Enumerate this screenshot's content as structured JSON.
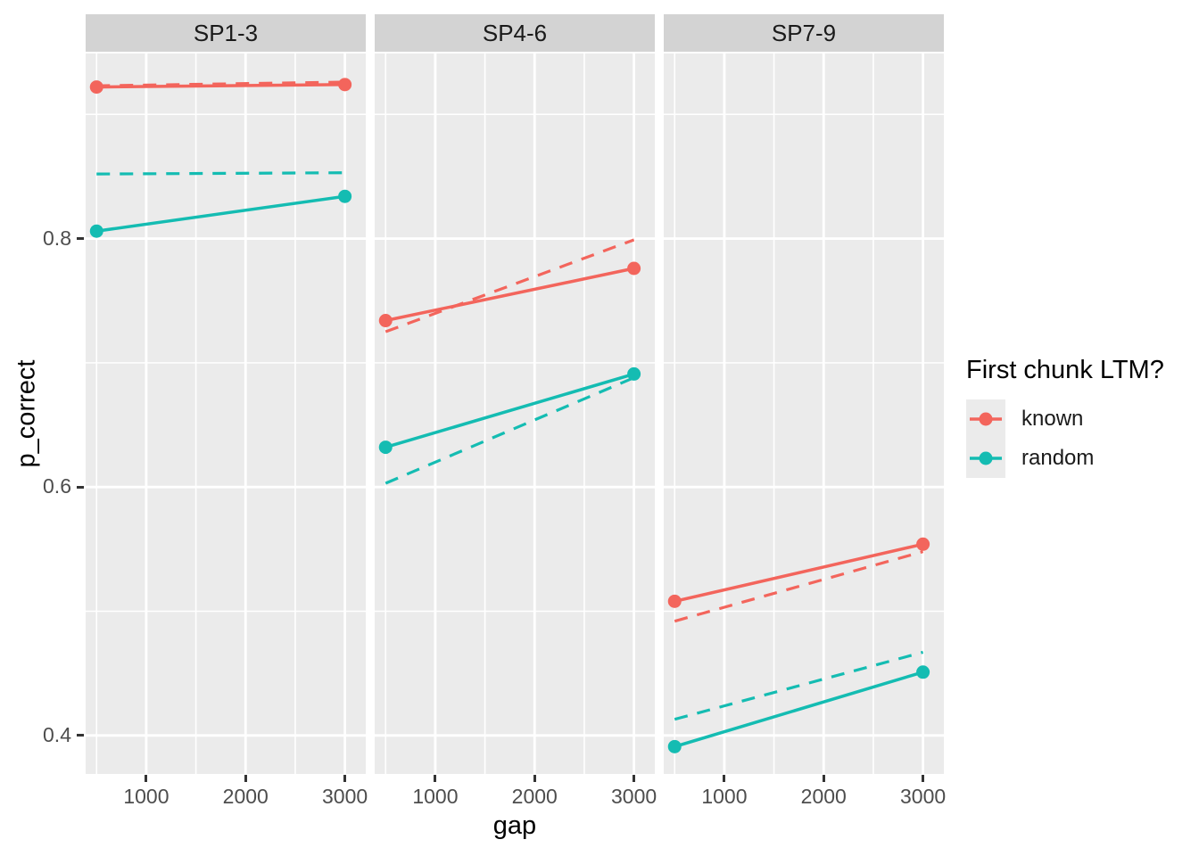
{
  "figure": {
    "background": "#FFFFFF",
    "panel_bg": "#EBEBEB",
    "strip_bg": "#D3D3D3",
    "grid_color": "#FFFFFF",
    "tick_color": "#333333",
    "tick_label_color": "#4D4D4D"
  },
  "chart_data": {
    "type": "line",
    "title": "",
    "xlabel": "gap",
    "ylabel": "p_correct",
    "grid": true,
    "legend_position": "right",
    "xlim": [
      390,
      3210
    ],
    "ylim": [
      0.369,
      0.949
    ],
    "x_ticks": [
      1000,
      2000,
      3000
    ],
    "x_tick_labels": [
      "1000",
      "2000",
      "3000"
    ],
    "x_minor": [
      500,
      1500,
      2500
    ],
    "y_ticks": [
      0.4,
      0.6,
      0.8
    ],
    "y_tick_labels": [
      "0.4",
      "0.6",
      "0.8"
    ],
    "y_minor": [
      0.5,
      0.7,
      0.9
    ],
    "legend": {
      "title": "First chunk LTM?",
      "entries": [
        {
          "label": "known",
          "color": "#F3655C"
        },
        {
          "label": "random",
          "color": "#14BCB2"
        }
      ]
    },
    "facets": [
      {
        "label": "SP1-3",
        "series": [
          {
            "group": "known",
            "kind": "predicted",
            "style": "dashed",
            "points": false,
            "x": [
              500,
              3000
            ],
            "y": [
              0.923,
              0.926
            ]
          },
          {
            "group": "random",
            "kind": "predicted",
            "style": "dashed",
            "points": false,
            "x": [
              500,
              3000
            ],
            "y": [
              0.852,
              0.853
            ]
          },
          {
            "group": "known",
            "kind": "observed",
            "style": "solid",
            "points": true,
            "x": [
              500,
              3000
            ],
            "y": [
              0.922,
              0.924
            ]
          },
          {
            "group": "random",
            "kind": "observed",
            "style": "solid",
            "points": true,
            "x": [
              500,
              3000
            ],
            "y": [
              0.806,
              0.834
            ]
          }
        ]
      },
      {
        "label": "SP4-6",
        "series": [
          {
            "group": "known",
            "kind": "predicted",
            "style": "dashed",
            "points": false,
            "x": [
              500,
              3000
            ],
            "y": [
              0.725,
              0.799
            ]
          },
          {
            "group": "random",
            "kind": "predicted",
            "style": "dashed",
            "points": false,
            "x": [
              500,
              3000
            ],
            "y": [
              0.603,
              0.688
            ]
          },
          {
            "group": "known",
            "kind": "observed",
            "style": "solid",
            "points": true,
            "x": [
              500,
              3000
            ],
            "y": [
              0.734,
              0.776
            ]
          },
          {
            "group": "random",
            "kind": "observed",
            "style": "solid",
            "points": true,
            "x": [
              500,
              3000
            ],
            "y": [
              0.632,
              0.691
            ]
          }
        ]
      },
      {
        "label": "SP7-9",
        "series": [
          {
            "group": "known",
            "kind": "predicted",
            "style": "dashed",
            "points": false,
            "x": [
              500,
              3000
            ],
            "y": [
              0.492,
              0.548
            ]
          },
          {
            "group": "random",
            "kind": "predicted",
            "style": "dashed",
            "points": false,
            "x": [
              500,
              3000
            ],
            "y": [
              0.413,
              0.467
            ]
          },
          {
            "group": "known",
            "kind": "observed",
            "style": "solid",
            "points": true,
            "x": [
              500,
              3000
            ],
            "y": [
              0.508,
              0.554
            ]
          },
          {
            "group": "random",
            "kind": "observed",
            "style": "solid",
            "points": true,
            "x": [
              500,
              3000
            ],
            "y": [
              0.391,
              0.451
            ]
          }
        ]
      }
    ]
  }
}
